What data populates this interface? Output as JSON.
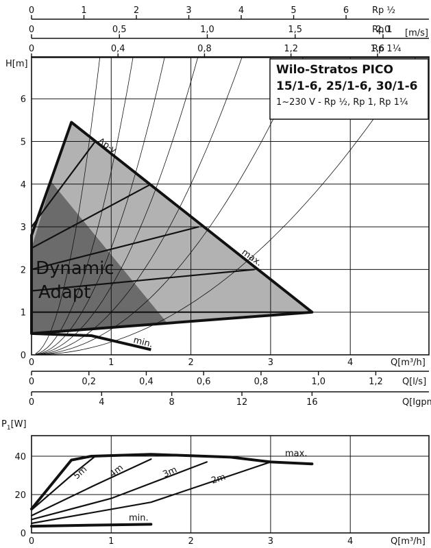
{
  "title": {
    "line1": "Wilo-Stratos PICO",
    "line2": "15/1-6, 25/1-6, 30/1-6",
    "line3": "1~230 V - Rp ½, Rp 1, Rp 1¼"
  },
  "top_scales": [
    {
      "label": "Rp ½",
      "ticks": [
        "0",
        "1",
        "2",
        "3",
        "4",
        "5",
        "6"
      ],
      "values": [
        0,
        1,
        2,
        3,
        4,
        5,
        6
      ]
    },
    {
      "label": "Rp 1",
      "unit": "[m/s]",
      "ticks": [
        "0",
        "0,5",
        "1,0",
        "1,5",
        "2,0"
      ],
      "values": [
        0,
        0.5,
        1.0,
        1.5,
        2.0
      ]
    },
    {
      "label": "Rp 1¼",
      "ticks": [
        "0",
        "0,4",
        "0,8",
        "1,2",
        "1,6"
      ],
      "values": [
        0,
        0.4,
        0.8,
        1.2,
        1.6
      ]
    }
  ],
  "bottom_scales": [
    {
      "label": "Q[l/s]",
      "ticks": [
        "0",
        "0,2",
        "0,4",
        "0,6",
        "0,8",
        "1,0",
        "1,2"
      ],
      "values": [
        0,
        0.2,
        0.4,
        0.6,
        0.8,
        1.0,
        1.2
      ]
    },
    {
      "label": "Q[Igpm]",
      "ticks": [
        "0",
        "4",
        "8",
        "12",
        "16"
      ],
      "values": [
        0,
        4,
        8,
        12,
        16
      ]
    }
  ],
  "chart_data": [
    {
      "type": "area",
      "ylabel": "H[m]",
      "xlabel": "Q[m³/h]",
      "x_ticks": [
        "0",
        "1",
        "2",
        "3",
        "4"
      ],
      "y_ticks": [
        "0",
        "1",
        "2",
        "3",
        "4",
        "5",
        "6"
      ],
      "xlim": [
        0,
        5.0
      ],
      "ylim": [
        0,
        7.0
      ],
      "dynamic_adapt_label": [
        "Dynamic",
        "Adapt"
      ],
      "regions": {
        "dp_v_area": [
          [
            0,
            2.8
          ],
          [
            0.5,
            5.45
          ],
          [
            3.52,
            1.0
          ],
          [
            0,
            0.5
          ]
        ],
        "dynamic_adapt_area": [
          [
            0,
            0.5
          ],
          [
            0,
            2.5
          ],
          [
            0.25,
            4.05
          ],
          [
            1.7,
            0.75
          ]
        ]
      },
      "series": [
        {
          "name": "max.",
          "points": [
            [
              0,
              2.8
            ],
            [
              0.5,
              5.45
            ],
            [
              3.52,
              1.0
            ],
            [
              0,
              0.5
            ]
          ]
        },
        {
          "name": "Δp-v",
          "points": [
            [
              0,
              1.0
            ],
            [
              3.52,
              1.0
            ]
          ]
        },
        {
          "points": [
            [
              0,
              1.5
            ],
            [
              2.8,
              2.0
            ]
          ]
        },
        {
          "points": [
            [
              0,
              2.0
            ],
            [
              2.1,
              3.0
            ]
          ]
        },
        {
          "points": [
            [
              0,
              2.5
            ],
            [
              1.5,
              4.0
            ]
          ]
        },
        {
          "points": [
            [
              0,
              3.0
            ],
            [
              0.8,
              5.0
            ]
          ]
        },
        {
          "name": "min.",
          "points": [
            [
              0,
              0.5
            ],
            [
              0.75,
              0.45
            ],
            [
              1.5,
              0.12
            ]
          ]
        }
      ],
      "system_curves": [
        0.3,
        0.6,
        1.0,
        1.6,
        2.5,
        4.3,
        9.5
      ],
      "labels": [
        "Δp-v",
        "max.",
        "min."
      ]
    },
    {
      "type": "line",
      "ylabel": "P1[W]",
      "xlabel": "Q[m³/h]",
      "x_ticks": [
        "0",
        "1",
        "2",
        "3",
        "4"
      ],
      "y_ticks": [
        "0",
        "20",
        "40"
      ],
      "xlim": [
        0,
        5.0
      ],
      "ylim": [
        0,
        50
      ],
      "series": [
        {
          "name": "max.",
          "points": [
            [
              0,
              12.5
            ],
            [
              0.5,
              38
            ],
            [
              0.75,
              40
            ],
            [
              1.5,
              41
            ],
            [
              2.5,
              39.5
            ],
            [
              3.0,
              37
            ],
            [
              3.52,
              36
            ]
          ]
        },
        {
          "name": "5m",
          "points": [
            [
              0,
              12
            ],
            [
              0.5,
              30
            ],
            [
              0.8,
              40
            ]
          ]
        },
        {
          "name": "4m",
          "points": [
            [
              0,
              9
            ],
            [
              0.8,
              25
            ],
            [
              1.5,
              38.5
            ]
          ]
        },
        {
          "name": "3m",
          "points": [
            [
              0,
              7
            ],
            [
              1.0,
              18
            ],
            [
              2.2,
              37
            ]
          ]
        },
        {
          "name": "2m",
          "points": [
            [
              0,
              5
            ],
            [
              1.5,
              16
            ],
            [
              3.0,
              37
            ]
          ]
        },
        {
          "name": "min.",
          "points": [
            [
              0,
              3.5
            ],
            [
              1.0,
              4.2
            ],
            [
              1.5,
              4.5
            ]
          ]
        }
      ],
      "labels": [
        "5m",
        "4m",
        "3m",
        "2m",
        "max.",
        "min."
      ]
    }
  ]
}
